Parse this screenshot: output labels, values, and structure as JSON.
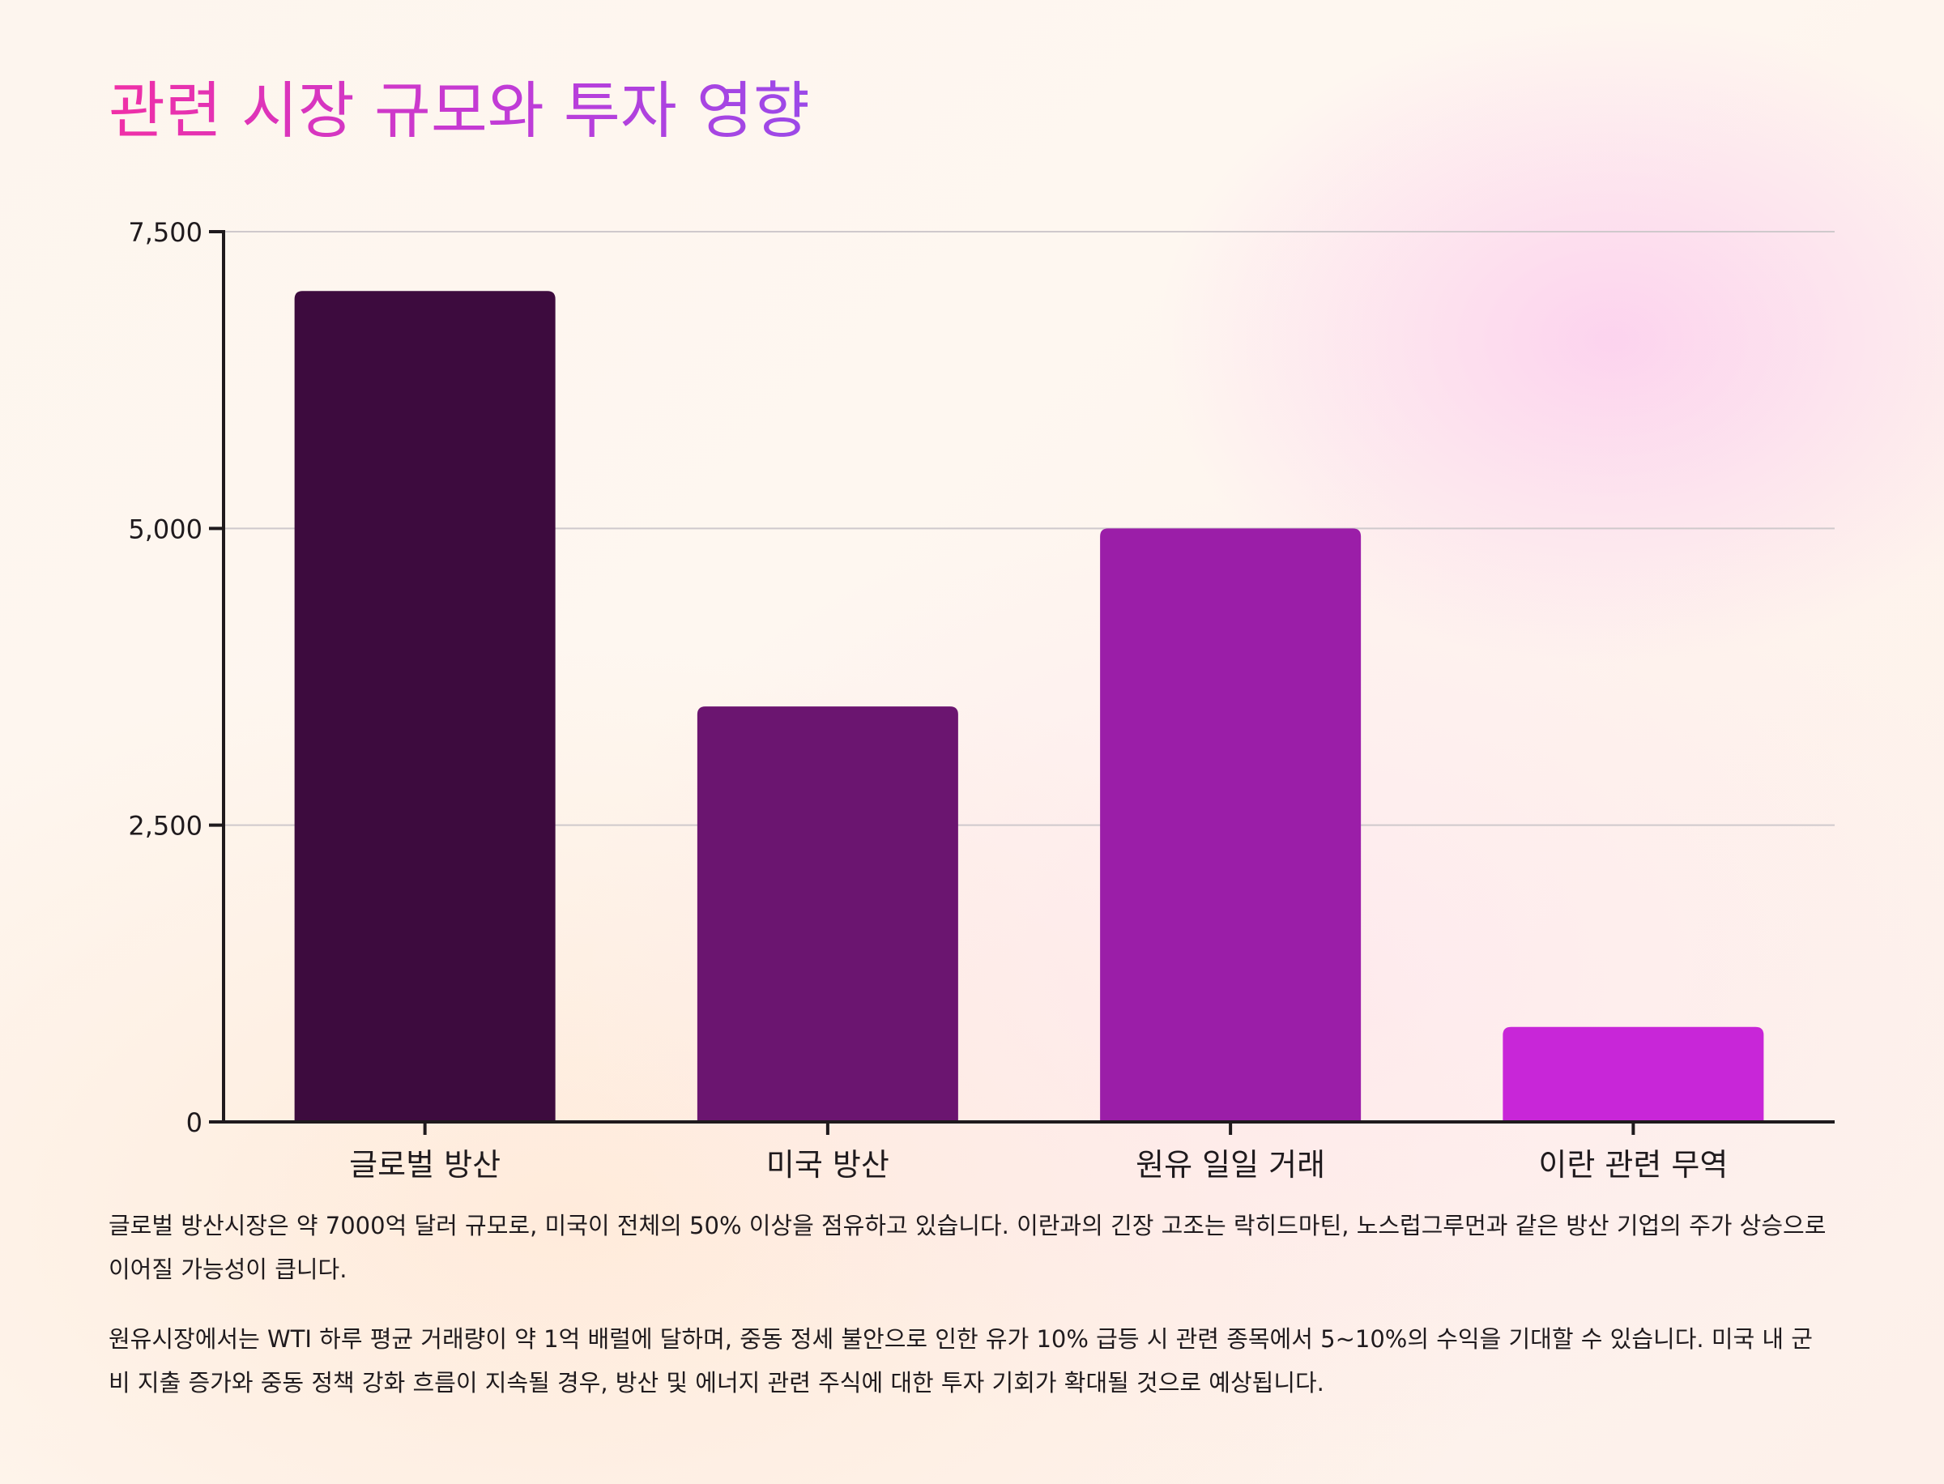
{
  "title": "관련 시장 규모와 투자 영향",
  "chart_data": {
    "type": "bar",
    "categories": [
      "글로벌 방산",
      "미국 방산",
      "원유 일일 거래",
      "이란 관련 무역"
    ],
    "values": [
      7000,
      3500,
      5000,
      800
    ],
    "ylim": [
      0,
      7500
    ],
    "yticks": [
      0,
      2500,
      5000,
      7500
    ],
    "ytick_labels": [
      "0",
      "2,500",
      "5,000",
      "7,500"
    ],
    "grid": true,
    "colors": [
      "#3d0b3e",
      "#6b1570",
      "#9b1ea8",
      "#c826d8"
    ],
    "xlabel": "",
    "ylabel": ""
  },
  "paragraphs": [
    "글로벌 방산시장은 약 7000억 달러 규모로, 미국이 전체의 50% 이상을 점유하고 있습니다. 이란과의 긴장 고조는 락히드마틴, 노스럽그루먼과 같은 방산 기업의 주가 상승으로 이어질 가능성이 큽니다.",
    "원유시장에서는 WTI 하루 평균 거래량이 약 1억 배럴에 달하며, 중동 정세 불안으로 인한 유가 10% 급등 시 관련 종목에서 5~10%의 수익을 기대할 수 있습니다. 미국 내 군비 지출 증가와 중동 정책 강화 흐름이 지속될 경우, 방산 및 에너지 관련 주식에 대한 투자 기회가 확대될 것으로 예상됩니다."
  ]
}
